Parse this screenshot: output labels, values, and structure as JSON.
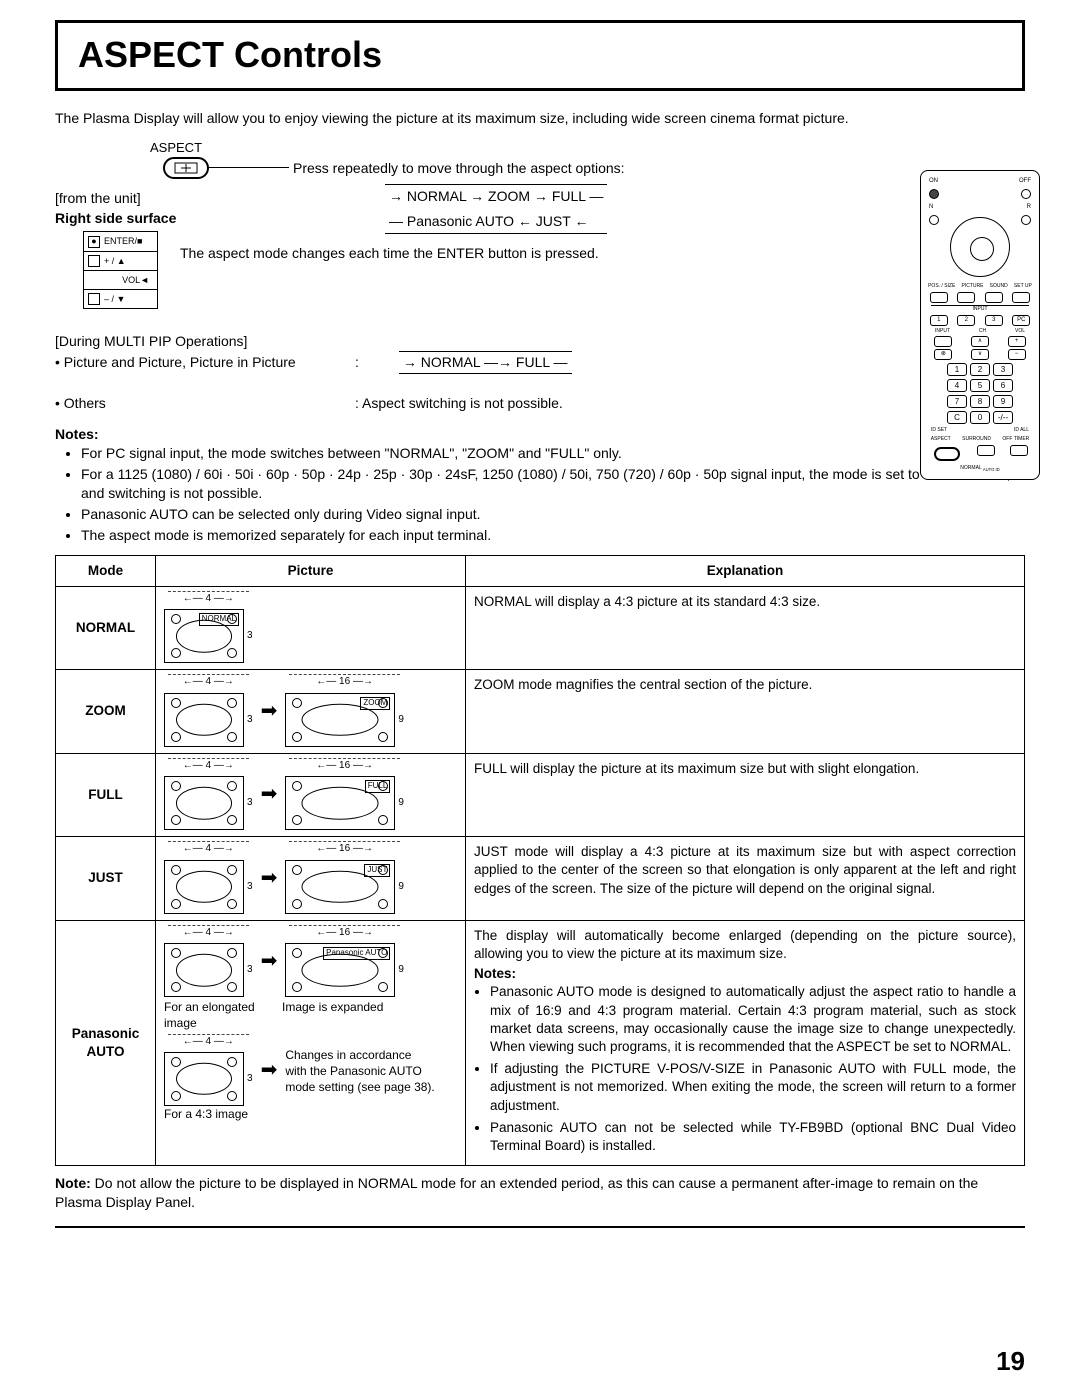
{
  "page": {
    "title": "ASPECT Controls",
    "page_number": "19",
    "intro": "The Plasma Display will allow you to enjoy viewing the picture at its maximum size, including wide screen cinema format picture."
  },
  "aspect_button": {
    "label": "ASPECT",
    "instruction": "Press repeatedly to move through the aspect options:",
    "cycle_top": "→ NORMAL → ZOOM → FULL —",
    "cycle_bottom": "— Panasonic AUTO ← JUST ←"
  },
  "from_unit": {
    "label": "[from the unit]",
    "surface": "Right side surface",
    "enter": "ENTER/■",
    "plus": "+ / ▲",
    "vol": "VOL◄",
    "minus": "– / ▼",
    "text": "The aspect mode changes each time the ENTER button is pressed."
  },
  "multi_pip": {
    "header": "[During MULTI PIP Operations]",
    "pp": "• Picture and Picture, Picture in Picture",
    "cycle": "→ NORMAL —→ FULL —",
    "others": "• Others",
    "others_text": ":  Aspect switching is not possible."
  },
  "notes": {
    "header": "Notes:",
    "items": [
      "For PC signal input, the mode switches between \"NORMAL\", \"ZOOM\" and \"FULL\" only.",
      "For a 1125 (1080) / 60i · 50i · 60p · 50p · 24p · 25p · 30p · 24sF, 1250 (1080) / 50i, 750 (720) / 60p · 50p signal input, the mode is set to \"FULL\" mode, and switching is not possible.",
      "Panasonic AUTO can be selected only during Video signal input.",
      "The aspect mode is memorized separately for each input terminal."
    ]
  },
  "table": {
    "headers": {
      "mode": "Mode",
      "picture": "Picture",
      "explanation": "Explanation"
    },
    "rows": [
      {
        "mode": "NORMAL",
        "pic": {
          "type": "single",
          "w": "4",
          "h": "3",
          "label": "NORMAL"
        },
        "explanation": "NORMAL will display a 4:3 picture at its standard 4:3 size."
      },
      {
        "mode": "ZOOM",
        "pic": {
          "type": "pair",
          "w1": "4",
          "h1": "3",
          "w2": "16",
          "h2": "9",
          "label": "ZOOM"
        },
        "explanation": "ZOOM mode magnifies the central section of the picture."
      },
      {
        "mode": "FULL",
        "pic": {
          "type": "pair",
          "w1": "4",
          "h1": "3",
          "w2": "16",
          "h2": "9",
          "label": "FULL"
        },
        "explanation": "FULL will display the picture at its maximum size but with slight elongation."
      },
      {
        "mode": "JUST",
        "pic": {
          "type": "pair",
          "w1": "4",
          "h1": "3",
          "w2": "16",
          "h2": "9",
          "label": "JUST"
        },
        "explanation": "JUST mode will display a 4:3 picture at its maximum size but with aspect correction applied to the center of the screen so that elongation is only apparent at the left and right edges of the screen. The size of the picture will depend on the original signal."
      },
      {
        "mode": "Panasonic AUTO",
        "pic": {
          "type": "panauto",
          "w1": "4",
          "h1": "3",
          "w2": "16",
          "h2": "9",
          "label": "Panasonic AUTO",
          "cap1": "For an elongated image",
          "cap2_line1": "Image is expanded",
          "cap2_line2": "Changes in accordance with the Panasonic AUTO mode setting (see page 38).",
          "cap3": "For a 4:3 image"
        },
        "exp_intro": "The display will automatically become enlarged (depending on the picture source), allowing you to view the picture at its maximum size.",
        "exp_notes_header": "Notes:",
        "exp_notes": [
          "Panasonic AUTO mode is designed to automatically adjust the aspect ratio to handle a mix of 16:9 and 4:3 program material. Certain 4:3 program material, such as stock market data screens, may occasionally cause the image size to change unexpectedly. When viewing such programs, it is recommended that the ASPECT be set to NORMAL.",
          "If adjusting the PICTURE V-POS/V-SIZE in Panasonic AUTO with FULL mode, the adjustment is not memorized. When exiting the mode, the screen will return to a former adjustment.",
          "Panasonic AUTO can not be selected while TY-FB9BD (optional BNC Dual Video Terminal Board) is installed."
        ]
      }
    ]
  },
  "footer_note": {
    "label": "Note:",
    "text": "Do not allow the picture to be displayed in NORMAL mode for an extended period, as this can cause a permanent after-image to remain on the Plasma Display Panel."
  },
  "remote": {
    "on": "ON",
    "off": "OFF",
    "n": "N",
    "r": "R",
    "pos": "POS. / SIZE",
    "picture": "PICTURE",
    "sound": "SOUND",
    "setup": "SET UP",
    "input_label": "INPUT",
    "ch": "CH",
    "vol": "VOL",
    "input": "INPUT",
    "keys": [
      "1",
      "2",
      "3",
      "4",
      "5",
      "6",
      "7",
      "8",
      "9",
      "C",
      "0",
      "-/--"
    ],
    "idset": "ID SET",
    "idall": "ID ALL",
    "aspect": "ASPECT",
    "surround": "SURROUND",
    "offtimer": "OFF TIMER",
    "pc": "PC",
    "normal": "NORMAL",
    "autoid": "AUTO ID"
  },
  "colors": {
    "border": "#000000",
    "background": "#ffffff"
  }
}
